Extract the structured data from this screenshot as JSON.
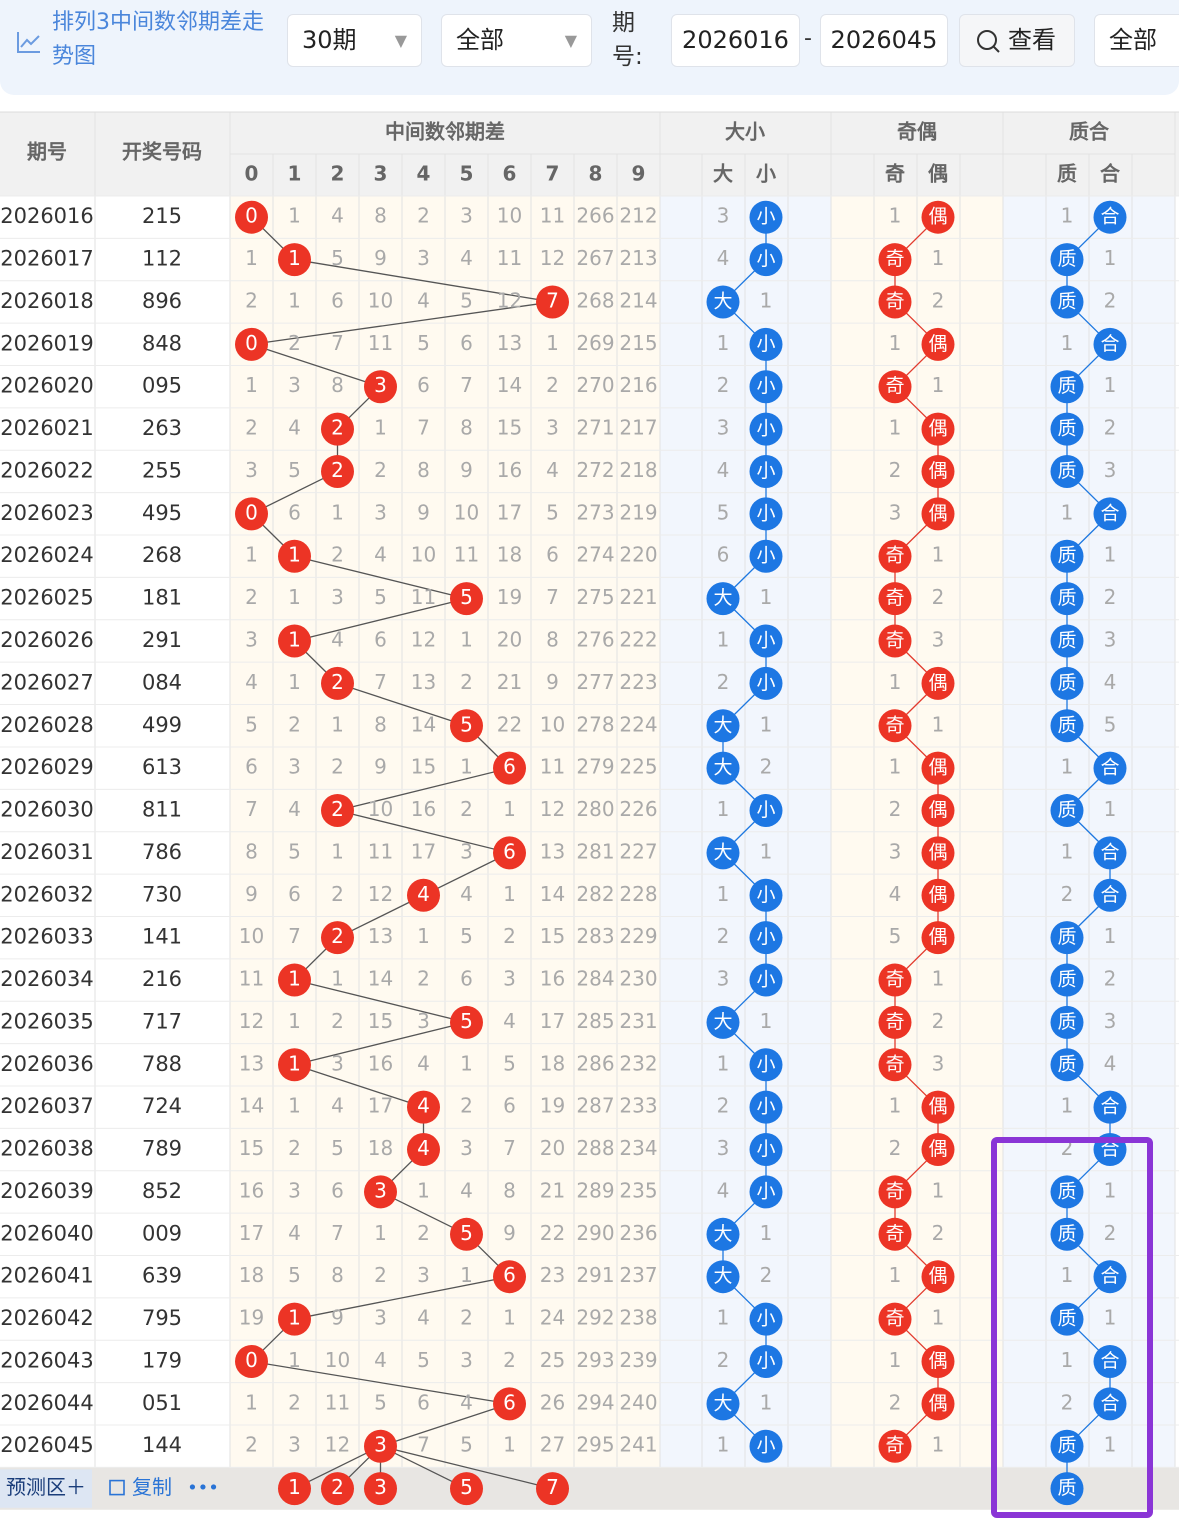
{
  "toolbar": {
    "title": "排列3中间数邻期差走势图",
    "period_select": "30期",
    "filter_select": "全部",
    "period_label": "期号:",
    "start": "2026016",
    "separator": "-",
    "end": "2026045",
    "button": "查看",
    "filter2": "全部"
  },
  "table": {
    "group_headers": [
      "期号",
      "开奖号码",
      "中间数邻期差",
      "大小",
      "奇偶",
      "质合"
    ],
    "sub_headers": [
      "0",
      "1",
      "2",
      "3",
      "4",
      "5",
      "6",
      "7",
      "8",
      "9",
      "大",
      "小",
      "奇",
      "偶",
      "质",
      "合"
    ],
    "rows": [
      {
        "period": "2026016",
        "number": "215",
        "digits": [
          0,
          1,
          4,
          8,
          2,
          3,
          10,
          11,
          266,
          212
        ],
        "hit": 0,
        "size": [
          "3",
          "小"
        ],
        "parity": [
          "1",
          "偶"
        ],
        "prime": [
          "1",
          "合"
        ]
      },
      {
        "period": "2026017",
        "number": "112",
        "digits": [
          1,
          1,
          5,
          9,
          3,
          4,
          11,
          12,
          267,
          213
        ],
        "hit": 1,
        "size": [
          "4",
          "小"
        ],
        "parity": [
          "奇",
          "1"
        ],
        "prime": [
          "质",
          "1"
        ]
      },
      {
        "period": "2026018",
        "number": "896",
        "digits": [
          2,
          1,
          6,
          10,
          4,
          5,
          12,
          7,
          268,
          214
        ],
        "hit": 7,
        "size": [
          "大",
          "1"
        ],
        "parity": [
          "奇",
          "2"
        ],
        "prime": [
          "质",
          "2"
        ]
      },
      {
        "period": "2026019",
        "number": "848",
        "digits": [
          0,
          2,
          7,
          11,
          5,
          6,
          13,
          1,
          269,
          215
        ],
        "hit": 0,
        "size": [
          "1",
          "小"
        ],
        "parity": [
          "1",
          "偶"
        ],
        "prime": [
          "1",
          "合"
        ]
      },
      {
        "period": "2026020",
        "number": "095",
        "digits": [
          1,
          3,
          8,
          3,
          6,
          7,
          14,
          2,
          270,
          216
        ],
        "hit": 3,
        "size": [
          "2",
          "小"
        ],
        "parity": [
          "奇",
          "1"
        ],
        "prime": [
          "质",
          "1"
        ]
      },
      {
        "period": "2026021",
        "number": "263",
        "digits": [
          2,
          4,
          2,
          1,
          7,
          8,
          15,
          3,
          271,
          217
        ],
        "hit": 2,
        "size": [
          "3",
          "小"
        ],
        "parity": [
          "1",
          "偶"
        ],
        "prime": [
          "质",
          "2"
        ]
      },
      {
        "period": "2026022",
        "number": "255",
        "digits": [
          3,
          5,
          2,
          2,
          8,
          9,
          16,
          4,
          272,
          218
        ],
        "hit": 2,
        "size": [
          "4",
          "小"
        ],
        "parity": [
          "2",
          "偶"
        ],
        "prime": [
          "质",
          "3"
        ]
      },
      {
        "period": "2026023",
        "number": "495",
        "digits": [
          0,
          6,
          1,
          3,
          9,
          10,
          17,
          5,
          273,
          219
        ],
        "hit": 0,
        "size": [
          "5",
          "小"
        ],
        "parity": [
          "3",
          "偶"
        ],
        "prime": [
          "1",
          "合"
        ]
      },
      {
        "period": "2026024",
        "number": "268",
        "digits": [
          1,
          1,
          2,
          4,
          10,
          11,
          18,
          6,
          274,
          220
        ],
        "hit": 1,
        "size": [
          "6",
          "小"
        ],
        "parity": [
          "奇",
          "1"
        ],
        "prime": [
          "质",
          "1"
        ]
      },
      {
        "period": "2026025",
        "number": "181",
        "digits": [
          2,
          1,
          3,
          5,
          11,
          5,
          19,
          7,
          275,
          221
        ],
        "hit": 5,
        "size": [
          "大",
          "1"
        ],
        "parity": [
          "奇",
          "2"
        ],
        "prime": [
          "质",
          "2"
        ]
      },
      {
        "period": "2026026",
        "number": "291",
        "digits": [
          3,
          1,
          4,
          6,
          12,
          1,
          20,
          8,
          276,
          222
        ],
        "hit": 1,
        "size": [
          "1",
          "小"
        ],
        "parity": [
          "奇",
          "3"
        ],
        "prime": [
          "质",
          "3"
        ]
      },
      {
        "period": "2026027",
        "number": "084",
        "digits": [
          4,
          1,
          2,
          7,
          13,
          2,
          21,
          9,
          277,
          223
        ],
        "hit": 2,
        "size": [
          "2",
          "小"
        ],
        "parity": [
          "1",
          "偶"
        ],
        "prime": [
          "质",
          "4"
        ]
      },
      {
        "period": "2026028",
        "number": "499",
        "digits": [
          5,
          2,
          1,
          8,
          14,
          5,
          22,
          10,
          278,
          224
        ],
        "hit": 5,
        "size": [
          "大",
          "1"
        ],
        "parity": [
          "奇",
          "1"
        ],
        "prime": [
          "质",
          "5"
        ]
      },
      {
        "period": "2026029",
        "number": "613",
        "digits": [
          6,
          3,
          2,
          9,
          15,
          1,
          6,
          11,
          279,
          225
        ],
        "hit": 6,
        "size": [
          "大",
          "2"
        ],
        "parity": [
          "1",
          "偶"
        ],
        "prime": [
          "1",
          "合"
        ]
      },
      {
        "period": "2026030",
        "number": "811",
        "digits": [
          7,
          4,
          2,
          10,
          16,
          2,
          1,
          12,
          280,
          226
        ],
        "hit": 2,
        "size": [
          "1",
          "小"
        ],
        "parity": [
          "2",
          "偶"
        ],
        "prime": [
          "质",
          "1"
        ]
      },
      {
        "period": "2026031",
        "number": "786",
        "digits": [
          8,
          5,
          1,
          11,
          17,
          3,
          6,
          13,
          281,
          227
        ],
        "hit": 6,
        "size": [
          "大",
          "1"
        ],
        "parity": [
          "3",
          "偶"
        ],
        "prime": [
          "1",
          "合"
        ]
      },
      {
        "period": "2026032",
        "number": "730",
        "digits": [
          9,
          6,
          2,
          12,
          4,
          4,
          1,
          14,
          282,
          228
        ],
        "hit": 4,
        "size": [
          "1",
          "小"
        ],
        "parity": [
          "4",
          "偶"
        ],
        "prime": [
          "2",
          "合"
        ]
      },
      {
        "period": "2026033",
        "number": "141",
        "digits": [
          10,
          7,
          2,
          13,
          1,
          5,
          2,
          15,
          283,
          229
        ],
        "hit": 2,
        "size": [
          "2",
          "小"
        ],
        "parity": [
          "5",
          "偶"
        ],
        "prime": [
          "质",
          "1"
        ]
      },
      {
        "period": "2026034",
        "number": "216",
        "digits": [
          11,
          1,
          1,
          14,
          2,
          6,
          3,
          16,
          284,
          230
        ],
        "hit": 1,
        "size": [
          "3",
          "小"
        ],
        "parity": [
          "奇",
          "1"
        ],
        "prime": [
          "质",
          "2"
        ]
      },
      {
        "period": "2026035",
        "number": "717",
        "digits": [
          12,
          1,
          2,
          15,
          3,
          5,
          4,
          17,
          285,
          231
        ],
        "hit": 5,
        "size": [
          "大",
          "1"
        ],
        "parity": [
          "奇",
          "2"
        ],
        "prime": [
          "质",
          "3"
        ]
      },
      {
        "period": "2026036",
        "number": "788",
        "digits": [
          13,
          1,
          3,
          16,
          4,
          1,
          5,
          18,
          286,
          232
        ],
        "hit": 1,
        "size": [
          "1",
          "小"
        ],
        "parity": [
          "奇",
          "3"
        ],
        "prime": [
          "质",
          "4"
        ]
      },
      {
        "period": "2026037",
        "number": "724",
        "digits": [
          14,
          1,
          4,
          17,
          4,
          2,
          6,
          19,
          287,
          233
        ],
        "hit": 4,
        "size": [
          "2",
          "小"
        ],
        "parity": [
          "1",
          "偶"
        ],
        "prime": [
          "1",
          "合"
        ]
      },
      {
        "period": "2026038",
        "number": "789",
        "digits": [
          15,
          2,
          5,
          18,
          4,
          3,
          7,
          20,
          288,
          234
        ],
        "hit": 4,
        "size": [
          "3",
          "小"
        ],
        "parity": [
          "2",
          "偶"
        ],
        "prime": [
          "2",
          "合"
        ]
      },
      {
        "period": "2026039",
        "number": "852",
        "digits": [
          16,
          3,
          6,
          3,
          1,
          4,
          8,
          21,
          289,
          235
        ],
        "hit": 3,
        "size": [
          "4",
          "小"
        ],
        "parity": [
          "奇",
          "1"
        ],
        "prime": [
          "质",
          "1"
        ]
      },
      {
        "period": "2026040",
        "number": "009",
        "digits": [
          17,
          4,
          7,
          1,
          2,
          5,
          9,
          22,
          290,
          236
        ],
        "hit": 5,
        "size": [
          "大",
          "1"
        ],
        "parity": [
          "奇",
          "2"
        ],
        "prime": [
          "质",
          "2"
        ]
      },
      {
        "period": "2026041",
        "number": "639",
        "digits": [
          18,
          5,
          8,
          2,
          3,
          1,
          6,
          23,
          291,
          237
        ],
        "hit": 6,
        "size": [
          "大",
          "2"
        ],
        "parity": [
          "1",
          "偶"
        ],
        "prime": [
          "1",
          "合"
        ]
      },
      {
        "period": "2026042",
        "number": "795",
        "digits": [
          19,
          1,
          9,
          3,
          4,
          2,
          1,
          24,
          292,
          238
        ],
        "hit": 1,
        "size": [
          "1",
          "小"
        ],
        "parity": [
          "奇",
          "1"
        ],
        "prime": [
          "质",
          "1"
        ]
      },
      {
        "period": "2026043",
        "number": "179",
        "digits": [
          0,
          1,
          10,
          4,
          5,
          3,
          2,
          25,
          293,
          239
        ],
        "hit": 0,
        "size": [
          "2",
          "小"
        ],
        "parity": [
          "1",
          "偶"
        ],
        "prime": [
          "1",
          "合"
        ]
      },
      {
        "period": "2026044",
        "number": "051",
        "digits": [
          1,
          2,
          11,
          5,
          6,
          4,
          6,
          26,
          294,
          240
        ],
        "hit": 6,
        "size": [
          "大",
          "1"
        ],
        "parity": [
          "2",
          "偶"
        ],
        "prime": [
          "2",
          "合"
        ]
      },
      {
        "period": "2026045",
        "number": "144",
        "digits": [
          2,
          3,
          12,
          3,
          7,
          5,
          1,
          27,
          295,
          241
        ],
        "hit": 3,
        "size": [
          "1",
          "小"
        ],
        "parity": [
          "奇",
          "1"
        ],
        "prime": [
          "质",
          "1"
        ]
      }
    ],
    "predict": {
      "label": "预测区＋",
      "copy": "复制",
      "more": "•••",
      "digits": [
        "1",
        "2",
        "3",
        "5",
        "7"
      ],
      "prime": "质"
    }
  }
}
